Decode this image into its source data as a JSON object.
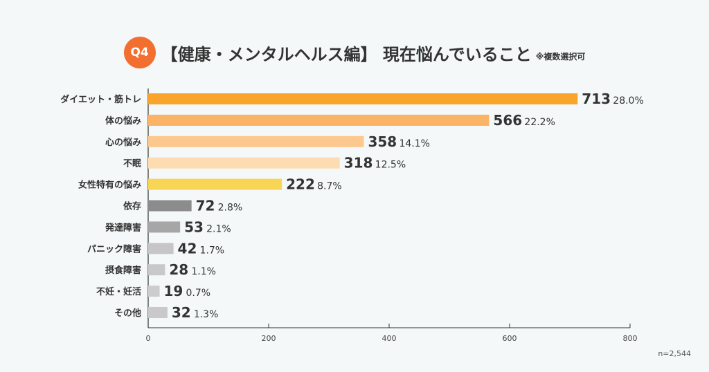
{
  "header": {
    "badge": "Q4",
    "title": "【健康・メンタルヘルス編】 現在悩んでいること",
    "note": "※複数選択可"
  },
  "footer": {
    "sample_size": "n=2,544"
  },
  "colors": {
    "bars": [
      "#f9a42a",
      "#fbb465",
      "#fcc88d",
      "#fddcb2",
      "#f9d555",
      "#8c8c8c",
      "#a6a6a6",
      "#c6c6c6",
      "#c8c8c8",
      "#cccccc",
      "#c9c9c9"
    ],
    "axis": "#333333",
    "text": "#333333"
  },
  "chart_data": {
    "type": "bar",
    "orientation": "horizontal",
    "categories": [
      "ダイエット・筋トレ",
      "体の悩み",
      "心の悩み",
      "不眠",
      "女性特有の悩み",
      "依存",
      "発達障害",
      "パニック障害",
      "摂食障害",
      "不妊・妊活",
      "その他"
    ],
    "values": [
      713,
      566,
      358,
      318,
      222,
      72,
      53,
      42,
      28,
      19,
      32
    ],
    "percent_labels": [
      "28.0%",
      "22.2%",
      "14.1%",
      "12.5%",
      "8.7%",
      "2.8%",
      "2.1%",
      "1.7%",
      "1.1%",
      "0.7%",
      "1.3%"
    ],
    "xlim": [
      0,
      800
    ],
    "xticks": [
      0,
      200,
      400,
      600,
      800
    ],
    "grid": false,
    "legend": "none"
  }
}
